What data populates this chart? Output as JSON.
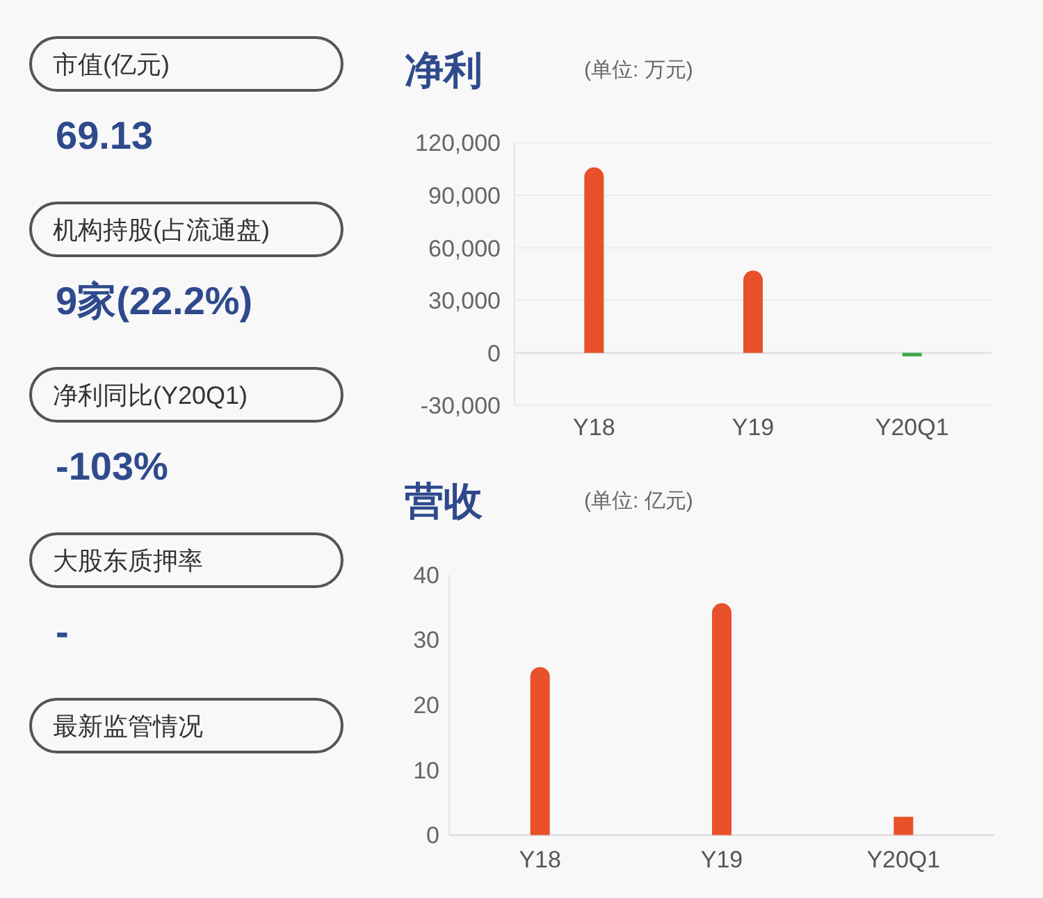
{
  "chart_data": [
    {
      "type": "other",
      "annotations": [
        "市值(亿元)",
        "69.13",
        "机构持股(占流通盘)",
        "9家(22.2%)",
        "净利同比(Y20Q1)",
        "-103%",
        "大股东质押率",
        "-",
        "最新监管情况"
      ]
    },
    {
      "type": "bar",
      "title": "净利",
      "subtitle": "(单位: 万元)",
      "categories": [
        "Y18",
        "Y19",
        "Y20Q1"
      ],
      "values": [
        106000,
        47000,
        -2000
      ],
      "colors": [
        "#e8512a",
        "#e8512a",
        "#3aa845"
      ],
      "ylim": [
        -30000,
        120000
      ],
      "yticks": [
        {
          "value": -30000,
          "label": "-30,000"
        },
        {
          "value": 0,
          "label": "0"
        },
        {
          "value": 30000,
          "label": "30,000"
        },
        {
          "value": 60000,
          "label": "60,000"
        },
        {
          "value": 90000,
          "label": "90,000"
        },
        {
          "value": 120000,
          "label": "120,000"
        }
      ],
      "grid": "y"
    },
    {
      "type": "bar",
      "title": "营收",
      "subtitle": "(单位: 亿元)",
      "categories": [
        "Y18",
        "Y19",
        "Y20Q1"
      ],
      "values": [
        25.8,
        35.6,
        2.8
      ],
      "colors": [
        "#e8512a",
        "#e8512a",
        "#e8512a"
      ],
      "ylim": [
        0,
        40
      ],
      "yticks": [
        0,
        10,
        20,
        30,
        40
      ]
    }
  ]
}
